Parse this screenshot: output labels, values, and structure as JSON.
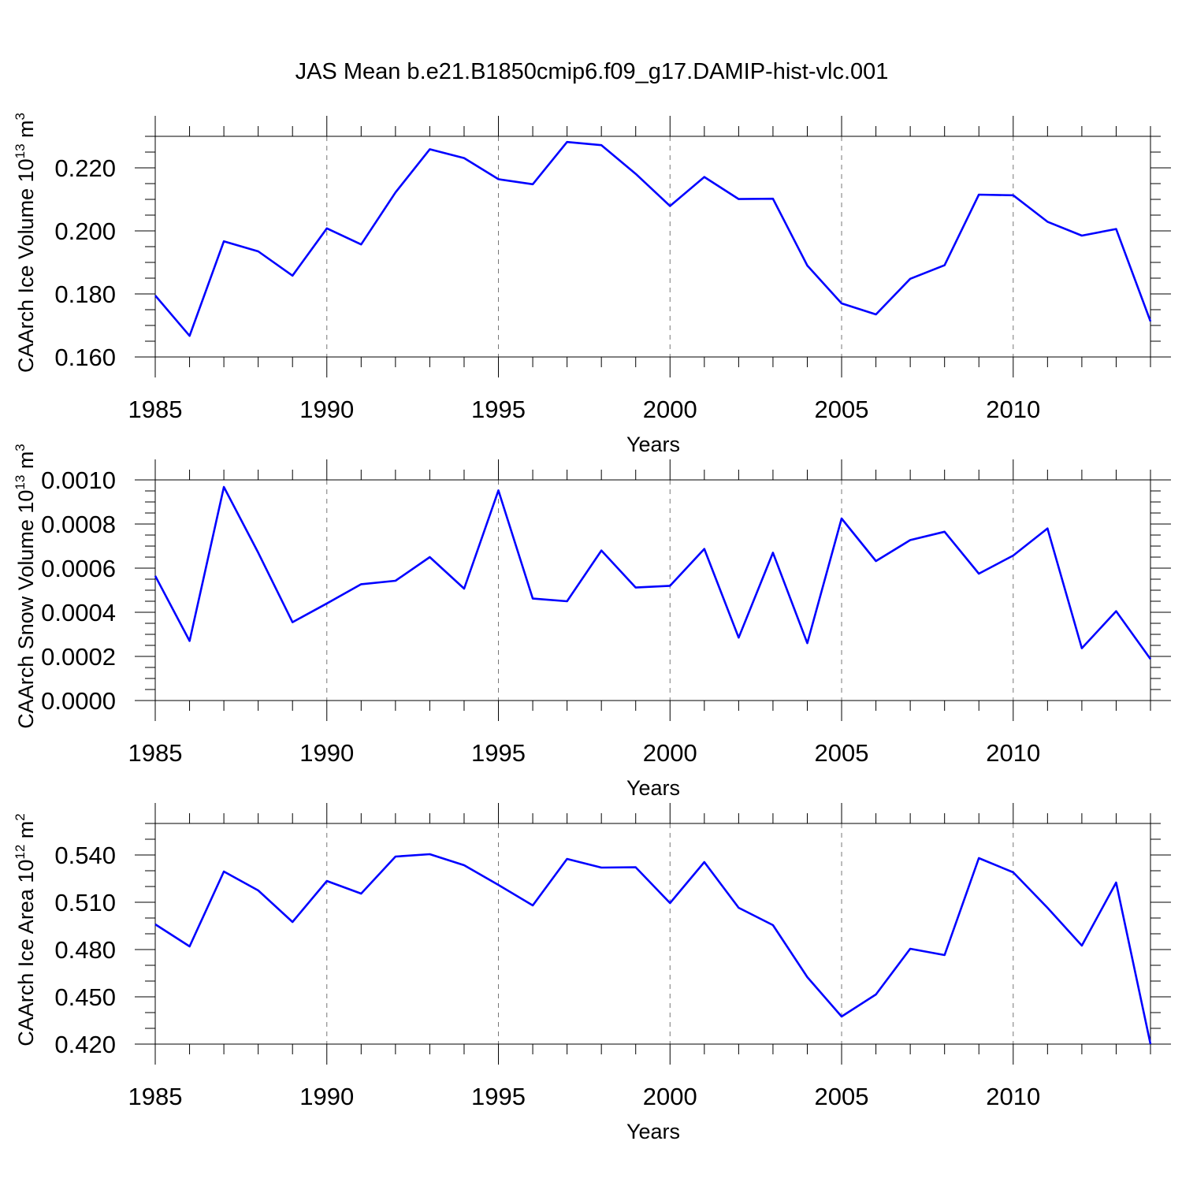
{
  "title": "JAS Mean b.e21.B1850cmip6.f09_g17.DAMIP-hist-vlc.001",
  "line_color": "#0000ff",
  "chart_data": [
    {
      "type": "line",
      "ylabel_main": "CAArch Ice Volume 10",
      "ylabel_exp": "13",
      "ylabel_unit": " m",
      "ylabel_unit_exp": "3",
      "xlabel": "Years",
      "xlim": [
        1985,
        2014
      ],
      "ylim": [
        0.16,
        0.23
      ],
      "yticks": [
        0.16,
        0.18,
        0.2,
        0.22
      ],
      "ytick_labels": [
        "0.160",
        "0.180",
        "0.200",
        "0.220"
      ],
      "yminor": 0.005,
      "xticks": [
        1985,
        1990,
        1995,
        2000,
        2005,
        2010
      ],
      "xtick_labels": [
        "1985",
        "1990",
        "1995",
        "2000",
        "2005",
        "2010"
      ],
      "series": [
        {
          "name": "CAArch Ice Volume",
          "x": [
            1985,
            1986,
            1987,
            1988,
            1989,
            1990,
            1991,
            1992,
            1993,
            1994,
            1995,
            1996,
            1997,
            1998,
            1999,
            2000,
            2001,
            2002,
            2003,
            2004,
            2005,
            2006,
            2007,
            2008,
            2009,
            2010,
            2011,
            2012,
            2013,
            2014
          ],
          "values": [
            0.1795,
            0.1667,
            0.1967,
            0.1935,
            0.1858,
            0.2008,
            0.1957,
            0.2122,
            0.2259,
            0.2231,
            0.2164,
            0.2148,
            0.2282,
            0.2272,
            0.2181,
            0.2079,
            0.2171,
            0.2101,
            0.2102,
            0.189,
            0.177,
            0.1735,
            0.1848,
            0.1891,
            0.2115,
            0.2113,
            0.2029,
            0.1985,
            0.2006,
            0.1713
          ]
        }
      ]
    },
    {
      "type": "line",
      "ylabel_main": "CAArch Snow Volume 10",
      "ylabel_exp": "13",
      "ylabel_unit": " m",
      "ylabel_unit_exp": "3",
      "xlabel": "Years",
      "xlim": [
        1985,
        2014
      ],
      "ylim": [
        0.0,
        0.001
      ],
      "yticks": [
        0.0,
        0.0002,
        0.0004,
        0.0006,
        0.0008,
        0.001
      ],
      "ytick_labels": [
        "0.0000",
        "0.0002",
        "0.0004",
        "0.0006",
        "0.0008",
        "0.0010"
      ],
      "yminor": 5e-05,
      "xticks": [
        1985,
        1990,
        1995,
        2000,
        2005,
        2010
      ],
      "xtick_labels": [
        "1985",
        "1990",
        "1995",
        "2000",
        "2005",
        "2010"
      ],
      "series": [
        {
          "name": "CAArch Snow Volume",
          "x": [
            1985,
            1986,
            1987,
            1988,
            1989,
            1990,
            1991,
            1992,
            1993,
            1994,
            1995,
            1996,
            1997,
            1998,
            1999,
            2000,
            2001,
            2002,
            2003,
            2004,
            2005,
            2006,
            2007,
            2008,
            2009,
            2010,
            2011,
            2012,
            2013,
            2014
          ],
          "values": [
            0.000565,
            0.00027,
            0.000968,
            0.00067,
            0.000355,
            0.00044,
            0.000527,
            0.000543,
            0.00065,
            0.000507,
            0.000952,
            0.000462,
            0.00045,
            0.00068,
            0.000512,
            0.00052,
            0.000687,
            0.000285,
            0.00067,
            0.00026,
            0.000825,
            0.000632,
            0.000727,
            0.000765,
            0.000575,
            0.000657,
            0.00078,
            0.000237,
            0.000405,
            0.000188
          ]
        }
      ]
    },
    {
      "type": "line",
      "ylabel_main": "CAArch Ice Area 10",
      "ylabel_exp": "12",
      "ylabel_unit": " m",
      "ylabel_unit_exp": "2",
      "xlabel": "Years",
      "xlim": [
        1985,
        2014
      ],
      "ylim": [
        0.42,
        0.56
      ],
      "yticks": [
        0.42,
        0.45,
        0.48,
        0.51,
        0.54
      ],
      "ytick_labels": [
        "0.420",
        "0.450",
        "0.480",
        "0.510",
        "0.540"
      ],
      "yminor": 0.01,
      "xticks": [
        1985,
        1990,
        1995,
        2000,
        2005,
        2010
      ],
      "xtick_labels": [
        "1985",
        "1990",
        "1995",
        "2000",
        "2005",
        "2010"
      ],
      "series": [
        {
          "name": "CAArch Ice Area",
          "x": [
            1985,
            1986,
            1987,
            1988,
            1989,
            1990,
            1991,
            1992,
            1993,
            1994,
            1995,
            1996,
            1997,
            1998,
            1999,
            2000,
            2001,
            2002,
            2003,
            2004,
            2005,
            2006,
            2007,
            2008,
            2009,
            2010,
            2011,
            2012,
            2013,
            2014
          ],
          "values": [
            0.496,
            0.482,
            0.5295,
            0.5175,
            0.4975,
            0.5235,
            0.5155,
            0.539,
            0.5405,
            0.5335,
            0.521,
            0.508,
            0.5375,
            0.532,
            0.5322,
            0.5095,
            0.5355,
            0.5065,
            0.4955,
            0.4625,
            0.4375,
            0.4515,
            0.4805,
            0.4765,
            0.538,
            0.529,
            0.5065,
            0.4825,
            0.5225,
            0.42
          ]
        }
      ]
    }
  ]
}
